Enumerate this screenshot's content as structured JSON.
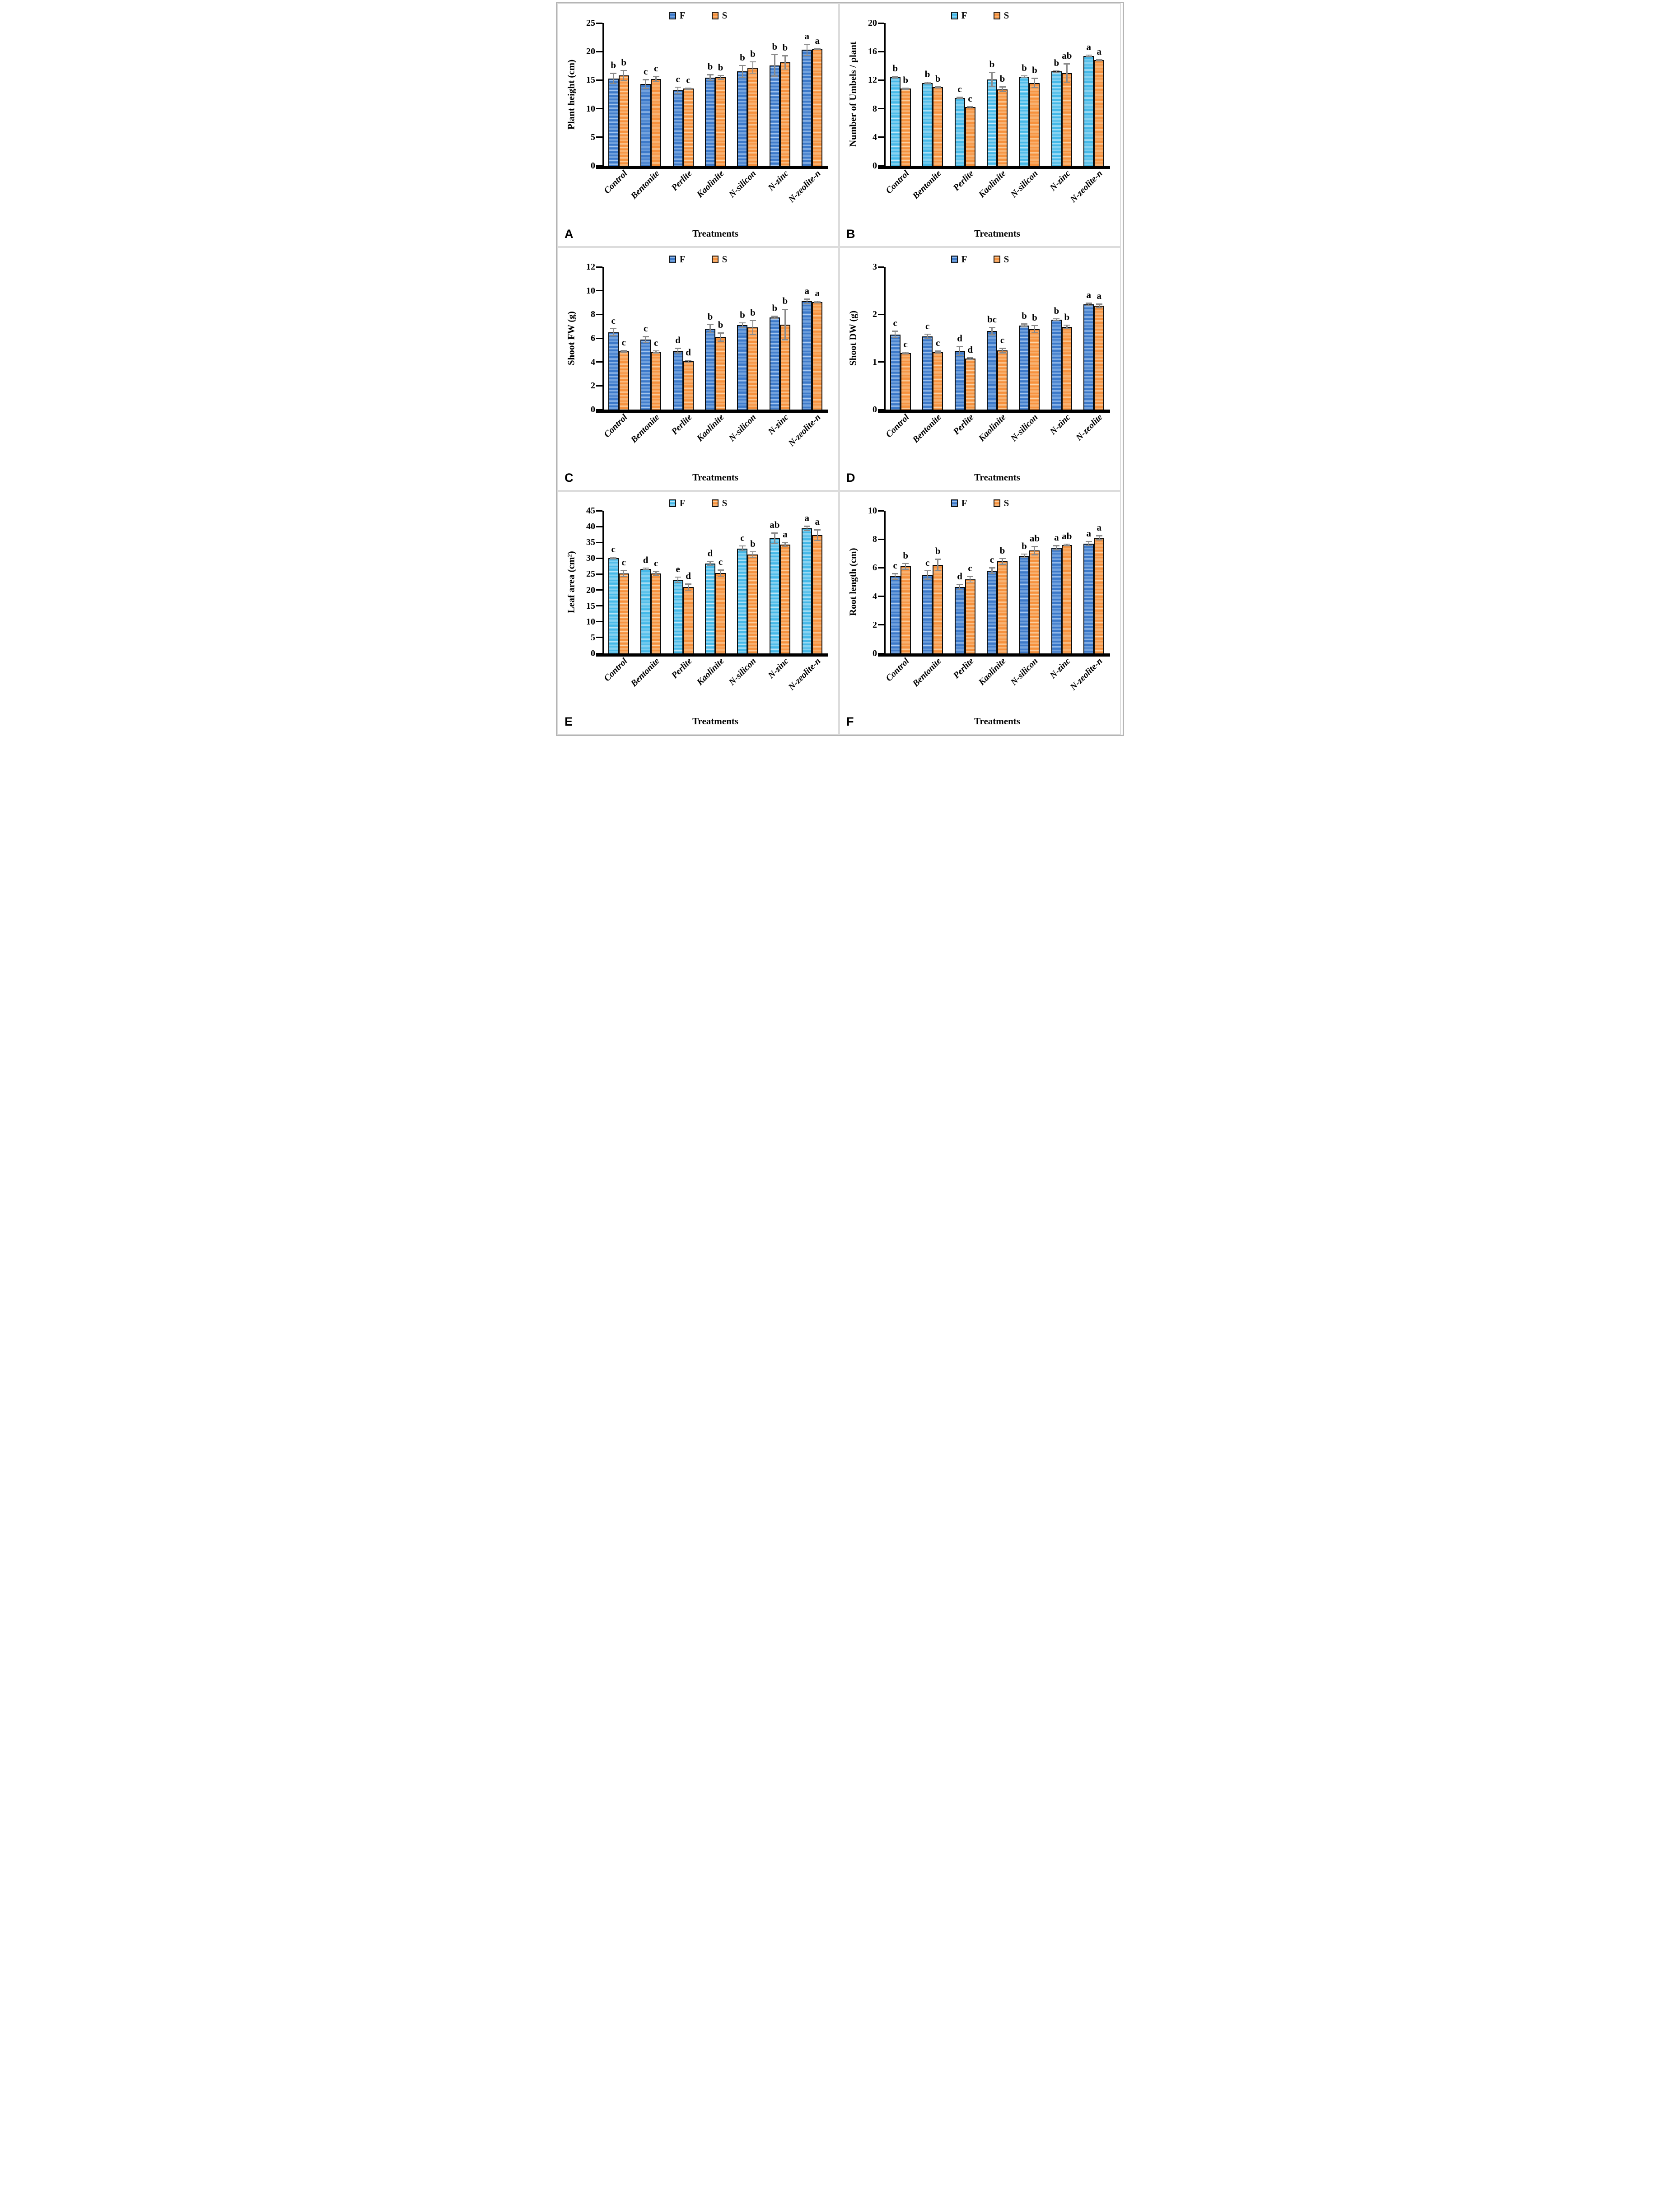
{
  "figure": {
    "description": "Six-panel bar chart figure comparing treatments under two conditions",
    "legend_labels": [
      "F",
      "S"
    ],
    "x_axis_title": "Treatments",
    "error_bar_color": "#8a8a8a",
    "bar_border_color": "#0c0c0c"
  },
  "chart_data": [
    {
      "type": "bar",
      "panel": "A",
      "ylabel": "Plant height (cm)",
      "xlabel": "Treatments",
      "ymax": 25,
      "yticks": [
        0,
        5,
        10,
        15,
        20,
        25
      ],
      "grid": false,
      "legend_position": "top-center",
      "categories": [
        "Control",
        "Bentonite",
        "Perlite",
        "Kaolinite",
        "N-silicon",
        "N-zinc",
        "N-zeolite-n"
      ],
      "colors": {
        "f_base": "#3C79C9",
        "f_stripe": "#A9CAF2",
        "s_base": "#F6913D",
        "s_stripe": "#FBD3A7"
      },
      "series": [
        {
          "name": "F",
          "values": [
            15.3,
            14.3,
            13.2,
            15.4,
            16.5,
            17.6,
            20.3
          ],
          "errors": [
            0.9,
            0.8,
            0.6,
            0.55,
            1.1,
            1.9,
            1.0
          ],
          "letters": [
            "b",
            "c",
            "c",
            "b",
            "b",
            "b",
            "a"
          ]
        },
        {
          "name": "S",
          "values": [
            15.8,
            15.2,
            13.5,
            15.5,
            17.2,
            18.1,
            20.4
          ],
          "errors": [
            0.9,
            0.5,
            0.12,
            0.35,
            1.0,
            1.2,
            0.1
          ],
          "letters": [
            "b",
            "c",
            "c",
            "b",
            "b",
            "b",
            "a"
          ]
        }
      ]
    },
    {
      "type": "bar",
      "panel": "B",
      "ylabel": "Number of Umbels / plant",
      "xlabel": "Treatments",
      "ymax": 20,
      "yticks": [
        0,
        4,
        8,
        12,
        16,
        20
      ],
      "grid": false,
      "legend_position": "top-center",
      "categories": [
        "Control",
        "Bentonite",
        "Perlite",
        "Kaolinite",
        "N-silicon",
        "N-zinc",
        "N-zeolite-n"
      ],
      "colors": {
        "f_base": "#45B9E8",
        "f_stripe": "#C6EBFA",
        "s_base": "#F6913D",
        "s_stripe": "#FBD3A7"
      },
      "series": [
        {
          "name": "F",
          "values": [
            12.4,
            11.6,
            9.5,
            12.1,
            12.5,
            13.2,
            15.4
          ],
          "errors": [
            0.12,
            0.12,
            0.12,
            1.0,
            0.12,
            0.12,
            0.12
          ],
          "letters": [
            "b",
            "b",
            "c",
            "b",
            "b",
            "b",
            "a"
          ]
        },
        {
          "name": "S",
          "values": [
            10.8,
            11.0,
            8.2,
            10.7,
            11.6,
            13.0,
            14.8
          ],
          "errors": [
            0.1,
            0.1,
            0.1,
            0.35,
            0.65,
            1.3,
            0.1
          ],
          "letters": [
            "b",
            "b",
            "c",
            "b",
            "b",
            "ab",
            "a"
          ]
        }
      ]
    },
    {
      "type": "bar",
      "panel": "C",
      "ylabel": "Shoot FW (g)",
      "xlabel": "Treatments",
      "ymax": 12,
      "yticks": [
        0,
        2,
        4,
        6,
        8,
        10,
        12
      ],
      "grid": false,
      "legend_position": "top-center",
      "categories": [
        "Control",
        "Bentonite",
        "Perlite",
        "Kaolinite",
        "N-silicon",
        "N-zinc",
        "N-zeolite-n"
      ],
      "colors": {
        "f_base": "#3C79C9",
        "f_stripe": "#A9CAF2",
        "s_base": "#F6913D",
        "s_stripe": "#FBD3A7"
      },
      "series": [
        {
          "name": "F",
          "values": [
            6.5,
            5.9,
            4.95,
            6.8,
            7.1,
            7.75,
            9.1
          ],
          "errors": [
            0.3,
            0.25,
            0.2,
            0.35,
            0.2,
            0.1,
            0.2
          ],
          "letters": [
            "c",
            "c",
            "d",
            "b",
            "b",
            "b",
            "a"
          ]
        },
        {
          "name": "S",
          "values": [
            4.9,
            4.85,
            4.05,
            6.1,
            6.9,
            7.15,
            9.05
          ],
          "errors": [
            0.06,
            0.1,
            0.08,
            0.35,
            0.6,
            1.3,
            0.07
          ],
          "letters": [
            "c",
            "c",
            "d",
            "b",
            "b",
            "b",
            "a"
          ]
        }
      ]
    },
    {
      "type": "bar",
      "panel": "D",
      "ylabel": "Shoot DW (g)",
      "xlabel": "Treatments",
      "ymax": 3,
      "yticks": [
        0,
        1,
        2,
        3
      ],
      "grid": false,
      "legend_position": "top-center",
      "categories": [
        "Control",
        "Bentonite",
        "Perlite",
        "Kaolinite",
        "N-silicon",
        "N-zinc",
        "N-zeolite"
      ],
      "colors": {
        "f_base": "#3C79C9",
        "f_stripe": "#A9CAF2",
        "s_base": "#F6913D",
        "s_stripe": "#FBD3A7"
      },
      "series": [
        {
          "name": "F",
          "values": [
            1.58,
            1.54,
            1.23,
            1.65,
            1.77,
            1.89,
            2.21
          ],
          "errors": [
            0.07,
            0.05,
            0.1,
            0.08,
            0.03,
            0.02,
            0.03
          ],
          "letters": [
            "c",
            "c",
            "d",
            "bc",
            "b",
            "b",
            "a"
          ]
        },
        {
          "name": "S",
          "values": [
            1.19,
            1.21,
            1.07,
            1.24,
            1.69,
            1.74,
            2.18
          ],
          "errors": [
            0.02,
            0.02,
            0.02,
            0.05,
            0.08,
            0.04,
            0.04
          ],
          "letters": [
            "c",
            "c",
            "d",
            "c",
            "b",
            "b",
            "a"
          ]
        }
      ]
    },
    {
      "type": "bar",
      "panel": "E",
      "ylabel": "Leaf area (cm²)",
      "xlabel": "Treatments",
      "ymax": 45,
      "yticks": [
        0,
        5,
        10,
        15,
        20,
        25,
        30,
        35,
        40,
        45
      ],
      "grid": false,
      "legend_position": "top-center",
      "categories": [
        "Control",
        "Bentonite",
        "Perlite",
        "Kaolinite",
        "N-silicon",
        "N-zinc",
        "N-zeolite-n"
      ],
      "colors": {
        "f_base": "#45B9E8",
        "f_stripe": "#C6EBFA",
        "s_base": "#F6913D",
        "s_stripe": "#FBD3A7"
      },
      "series": [
        {
          "name": "F",
          "values": [
            30.1,
            26.7,
            23.2,
            28.3,
            33.1,
            36.3,
            39.4
          ],
          "errors": [
            0.3,
            0.25,
            0.9,
            0.7,
            0.8,
            1.7,
            0.7
          ],
          "letters": [
            "c",
            "d",
            "e",
            "d",
            "c",
            "ab",
            "a"
          ]
        },
        {
          "name": "S",
          "values": [
            25.2,
            25.2,
            20.9,
            25.3,
            31.2,
            34.3,
            37.3
          ],
          "errors": [
            1.0,
            0.7,
            1.0,
            1.0,
            0.9,
            0.7,
            1.7
          ],
          "letters": [
            "c",
            "c",
            "d",
            "c",
            "b",
            "a",
            "a"
          ]
        }
      ]
    },
    {
      "type": "bar",
      "panel": "F",
      "ylabel": "Root length (cm)",
      "xlabel": "Treatments",
      "ymax": 10,
      "yticks": [
        0,
        2,
        4,
        6,
        8,
        10
      ],
      "grid": false,
      "legend_position": "top-center",
      "categories": [
        "Control",
        "Bentonite",
        "Perlite",
        "Kaolinite",
        "N-silicon",
        "N-zinc",
        "N-zeolite-n"
      ],
      "colors": {
        "f_base": "#3C79C9",
        "f_stripe": "#A9CAF2",
        "s_base": "#F6913D",
        "s_stripe": "#FBD3A7"
      },
      "series": [
        {
          "name": "F",
          "values": [
            5.4,
            5.5,
            4.65,
            5.8,
            6.85,
            7.4,
            7.7
          ],
          "errors": [
            0.2,
            0.3,
            0.2,
            0.2,
            0.12,
            0.15,
            0.15
          ],
          "letters": [
            "c",
            "c",
            "d",
            "c",
            "b",
            "a",
            "a"
          ]
        },
        {
          "name": "S",
          "values": [
            6.1,
            6.2,
            5.2,
            6.45,
            7.2,
            7.6,
            8.1
          ],
          "errors": [
            0.2,
            0.4,
            0.2,
            0.2,
            0.3,
            0.06,
            0.15
          ],
          "letters": [
            "b",
            "b",
            "c",
            "b",
            "ab",
            "ab",
            "a"
          ]
        }
      ]
    }
  ]
}
